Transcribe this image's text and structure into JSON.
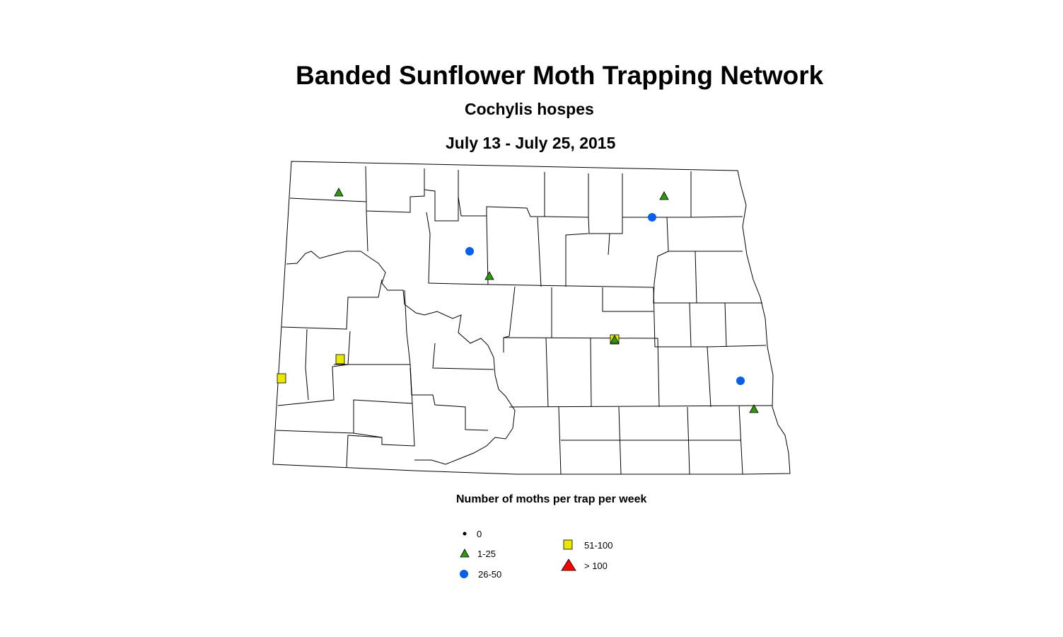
{
  "title": "Banded Sunflower Moth Trapping Network",
  "subtitle": "Cochylis hospes",
  "date_range": "July 13 - July 25, 2015",
  "legend": {
    "title": "Number of moths per trap per week",
    "items": [
      {
        "label": "0",
        "symbol": "dot",
        "color": "#000000"
      },
      {
        "label": "1-25",
        "symbol": "triangle",
        "color": "#2e9a0a"
      },
      {
        "label": "26-50",
        "symbol": "circle",
        "color": "#0a5fe8"
      },
      {
        "label": "51-100",
        "symbol": "square",
        "color": "#e8e800"
      },
      {
        "label": "> 100",
        "symbol": "triangle",
        "color": "#ff0000"
      }
    ]
  },
  "trap_sites": [
    {
      "category": "1-25"
    },
    {
      "category": "1-25"
    },
    {
      "category": "1-25"
    },
    {
      "category": "1-25"
    },
    {
      "category": "1-25"
    },
    {
      "category": "26-50"
    },
    {
      "category": "26-50"
    },
    {
      "category": "26-50"
    },
    {
      "category": "51-100"
    },
    {
      "category": "51-100"
    },
    {
      "category": "51-100"
    }
  ]
}
